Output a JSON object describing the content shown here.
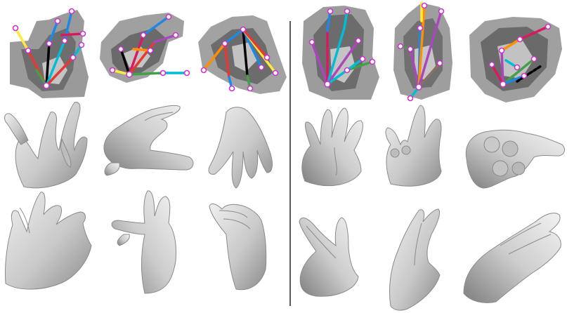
{
  "figure": {
    "background": "#ffffff",
    "divider_color": "#222222",
    "skin_fill": "#d2d2d2",
    "skin_edge": "#8a8a8a",
    "depth_dark": "#5e5e5e",
    "depth_mid": "#9a9a9a",
    "depth_light": "#c4c4c4",
    "joint_ring": "#cc33cc",
    "bone_colors": [
      "#d81b60",
      "#00bcd4",
      "#1e88e5",
      "#e53935",
      "#43a047",
      "#ffeb3b",
      "#000000",
      "#ff8f00",
      "#8d6e63",
      "#ab47bc"
    ],
    "panels": [
      {
        "group": "left",
        "row": "depth-keypoints",
        "index": 1
      },
      {
        "group": "left",
        "row": "depth-keypoints",
        "index": 2
      },
      {
        "group": "left",
        "row": "depth-keypoints",
        "index": 3
      },
      {
        "group": "right",
        "row": "depth-keypoints",
        "index": 1
      },
      {
        "group": "right",
        "row": "depth-keypoints",
        "index": 2
      },
      {
        "group": "right",
        "row": "depth-keypoints",
        "index": 3
      },
      {
        "group": "left",
        "row": "mesh-view-1",
        "index": 1
      },
      {
        "group": "left",
        "row": "mesh-view-1",
        "index": 2
      },
      {
        "group": "left",
        "row": "mesh-view-1",
        "index": 3
      },
      {
        "group": "right",
        "row": "mesh-view-1",
        "index": 1
      },
      {
        "group": "right",
        "row": "mesh-view-1",
        "index": 2
      },
      {
        "group": "right",
        "row": "mesh-view-1",
        "index": 3
      },
      {
        "group": "left",
        "row": "mesh-view-2",
        "index": 1
      },
      {
        "group": "left",
        "row": "mesh-view-2",
        "index": 2
      },
      {
        "group": "left",
        "row": "mesh-view-2",
        "index": 3
      },
      {
        "group": "right",
        "row": "mesh-view-2",
        "index": 1
      },
      {
        "group": "right",
        "row": "mesh-view-2",
        "index": 2
      },
      {
        "group": "right",
        "row": "mesh-view-2",
        "index": 3
      }
    ]
  }
}
